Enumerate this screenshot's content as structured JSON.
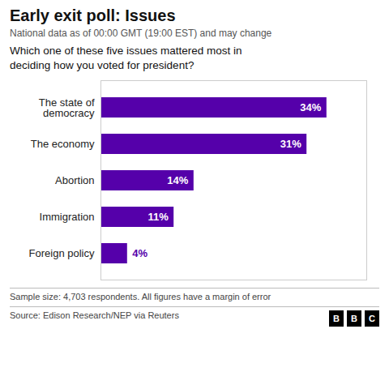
{
  "chart_data": {
    "type": "bar",
    "orientation": "horizontal",
    "title": "Early exit poll: Issues",
    "subtitle": "National data as of 00:00 GMT (19:00 EST) and may change",
    "annotations": [
      "Which one of these five issues mattered most in\ndeciding how you voted for president?",
      "Sample size: 4,703 respondents. All figures have a margin of error",
      "Source: Edison Research/NEP via Reuters",
      "BBC"
    ],
    "categories": [
      "The state of\ndemocracy",
      "The economy",
      "Abortion",
      "Immigration",
      "Foreign policy"
    ],
    "values": [
      34,
      31,
      14,
      11,
      4
    ],
    "value_labels": [
      "34%",
      "31%",
      "14%",
      "11%",
      "4%"
    ],
    "data_labels": true,
    "color": "#5500aa",
    "xlim": [
      0,
      40
    ],
    "xticks": [],
    "tick_labels": "y",
    "grid": false
  }
}
